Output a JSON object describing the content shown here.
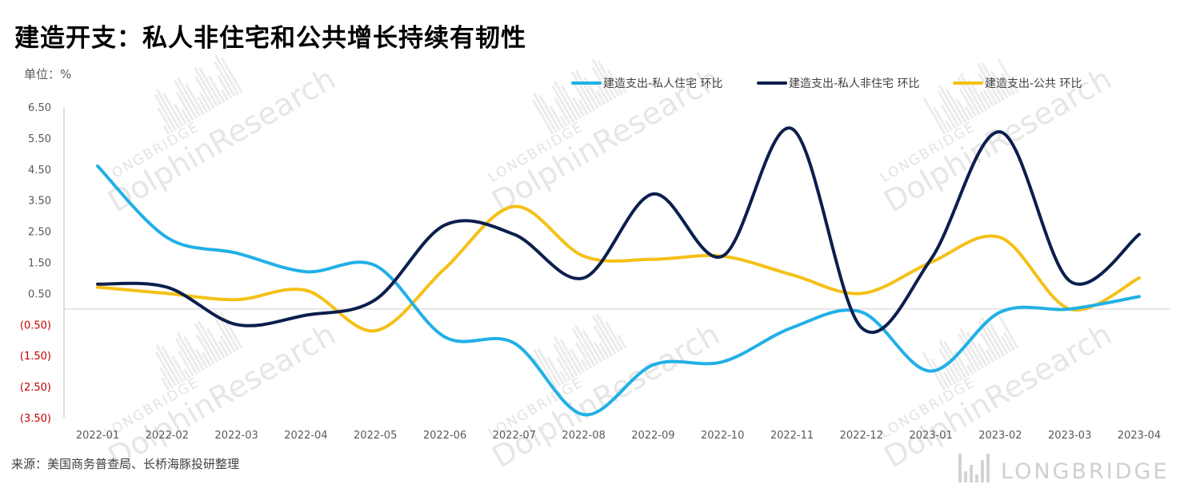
{
  "title": "建造开支：私人非住宅和公共增长持续有韧性",
  "unit_label": "单位：%",
  "source": "来源：美国商务普查局、长桥海豚投研整理",
  "brand": "LONGBRIDGE",
  "watermark": {
    "brand": "LONGBRIDGE",
    "product": "DolphinResearch"
  },
  "colors": {
    "negative_tick": "#c00000",
    "positive_tick": "#595959",
    "zero_line": "#d9d9d9"
  },
  "chart_data": {
    "type": "line",
    "categories": [
      "2022-01",
      "2022-02",
      "2022-03",
      "2022-04",
      "2022-05",
      "2022-06",
      "2022-07",
      "2022-08",
      "2022-09",
      "2022-10",
      "2022-11",
      "2022-12",
      "2023-01",
      "2023-02",
      "2023-03",
      "2023-04"
    ],
    "y_ticks": [
      6.5,
      5.5,
      4.5,
      3.5,
      2.5,
      1.5,
      0.5,
      -0.5,
      -1.5,
      -2.5,
      -3.5
    ],
    "y_tick_labels": [
      "6.50",
      "5.50",
      "4.50",
      "3.50",
      "2.50",
      "1.50",
      "0.50",
      "(0.50)",
      "(1.50)",
      "(2.50)",
      "(3.50)"
    ],
    "ylim": [
      -3.5,
      6.5
    ],
    "legend_position": "top-right",
    "series": [
      {
        "name": "建造支出-私人住宅 环比",
        "color": "#21b0e6",
        "values": [
          4.6,
          2.3,
          1.8,
          1.2,
          1.4,
          -0.9,
          -1.1,
          -3.4,
          -1.8,
          -1.7,
          -0.6,
          -0.1,
          -2.0,
          -0.1,
          0.0,
          0.4
        ]
      },
      {
        "name": "建造支出-私人非住宅 环比",
        "color": "#0b1f4d",
        "values": [
          0.8,
          0.7,
          -0.5,
          -0.2,
          0.3,
          2.7,
          2.4,
          1.0,
          3.7,
          1.7,
          5.8,
          -0.6,
          1.6,
          5.7,
          0.9,
          2.4
        ]
      },
      {
        "name": "建造支出-公共 环比",
        "color": "#f5c018",
        "values": [
          0.7,
          0.5,
          0.3,
          0.6,
          -0.7,
          1.3,
          3.3,
          1.7,
          1.6,
          1.7,
          1.1,
          0.5,
          1.5,
          2.3,
          0.0,
          1.0
        ]
      }
    ]
  }
}
